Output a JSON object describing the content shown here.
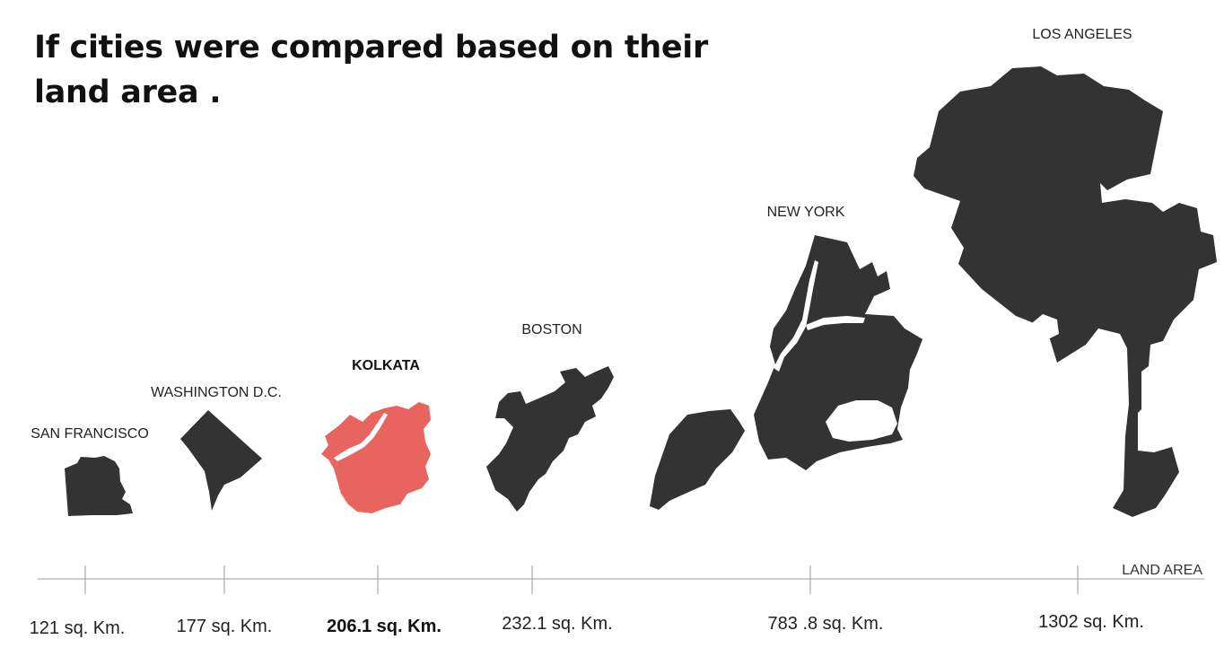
{
  "chart_data": {
    "type": "other",
    "title": "If cities were compared based on their land area .",
    "xlabel": "LAND AREA",
    "unit": "sq. Km.",
    "highlight_color": "#e8655f",
    "default_color": "#333333",
    "cities": [
      {
        "name": "SAN FRANCISCO",
        "area": 121,
        "area_label": "121 sq. Km.",
        "shape": "san-francisco-shape",
        "highlight": false
      },
      {
        "name": "WASHINGTON D.C.",
        "area": 177,
        "area_label": "177 sq. Km.",
        "shape": "washington-dc-shape",
        "highlight": false
      },
      {
        "name": "KOLKATA",
        "area": 206.1,
        "area_label": "206.1 sq. Km.",
        "shape": "kolkata-shape",
        "highlight": true
      },
      {
        "name": "BOSTON",
        "area": 232.1,
        "area_label": "232.1 sq. Km.",
        "shape": "boston-shape",
        "highlight": false
      },
      {
        "name": "NEW YORK",
        "area": 783.8,
        "area_label": "783 .8 sq. Km.",
        "shape": "new-york-shape",
        "highlight": false
      },
      {
        "name": "LOS ANGELES",
        "area": 1302,
        "area_label": "1302 sq. Km.",
        "shape": "los-angeles-shape",
        "highlight": false
      }
    ]
  }
}
